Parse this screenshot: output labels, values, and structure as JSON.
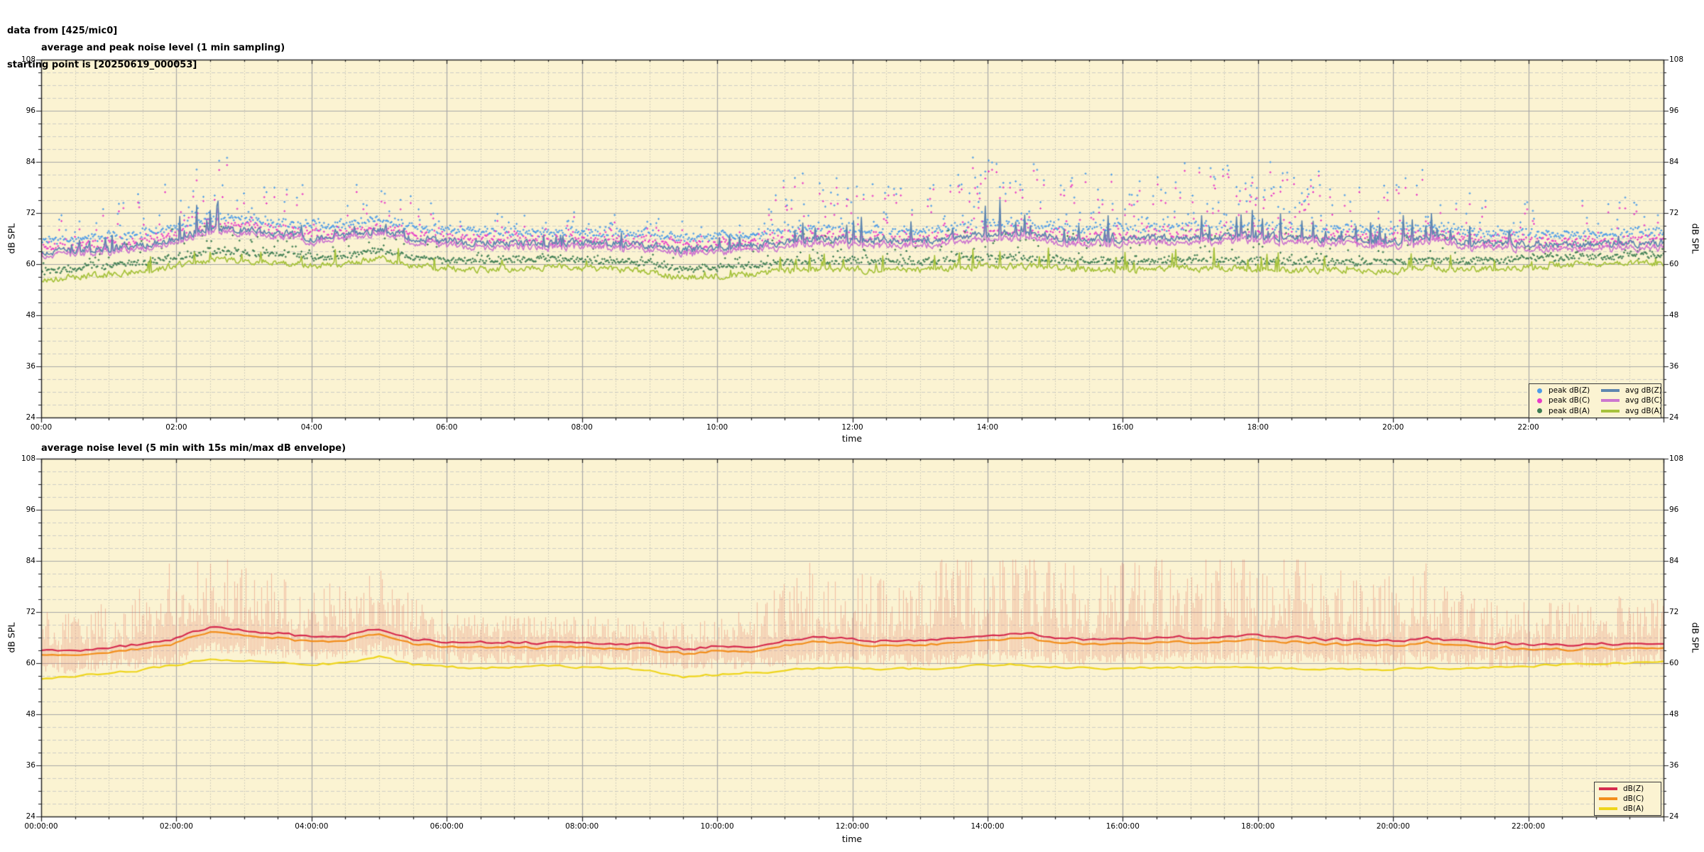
{
  "header": {
    "line1": "data from [425/mic0]",
    "line2": "starting point is [20250619_000053]"
  },
  "colors": {
    "plot_background": "#FBF3D2",
    "grid_major": "#A8A8A8",
    "grid_minor_dashed": "#CDCDC7",
    "grid_minor_dotted": "#BDBDB2",
    "border": "#1d1d1d",
    "peak_dbz": "#4D9CE8",
    "peak_dbc": "#E83CC8",
    "peak_dba": "#3D7D52",
    "avg_dbz": "#5F87B0",
    "avg_dbc": "#CC78CF",
    "avg_dba": "#A6C23C",
    "dbz": "#D62B4E",
    "dbc": "#F28E1C",
    "dba": "#EED51C",
    "envelope": "rgba(228,120,100,0.42)"
  },
  "chart_data": [
    {
      "type": "scatter",
      "title": "average and peak noise level (1 min sampling)",
      "xlabel": "time",
      "ylabel": "dB SPL",
      "y2label": "dB SPL",
      "xlim_hours": [
        0,
        24
      ],
      "ylim": [
        24,
        108
      ],
      "y_ticks": [
        24,
        36,
        48,
        60,
        72,
        84,
        96,
        108
      ],
      "y_minor_step_db": 3,
      "x_tick_labels": [
        "00:00",
        "02:00",
        "04:00",
        "06:00",
        "08:00",
        "10:00",
        "12:00",
        "14:00",
        "16:00",
        "18:00",
        "20:00",
        "22:00"
      ],
      "x_minor_step_hours": 0.5,
      "sampling": "1 min",
      "seed": 1337,
      "anchor_step_hours": 0.5,
      "scatter_series": [
        {
          "name": "peak dB(Z)",
          "color_key": "peak_dbz"
        },
        {
          "name": "peak dB(C)",
          "color_key": "peak_dbc"
        },
        {
          "name": "peak dB(A)",
          "color_key": "peak_dba"
        }
      ],
      "series": [
        {
          "name": "avg dB(Z)",
          "color_key": "avg_dbz",
          "anchors": [
            62.9,
            63.3,
            63.9,
            64.6,
            66.0,
            68.6,
            68.0,
            67.2,
            66.3,
            66.6,
            68.3,
            66.0,
            65.3,
            65.1,
            65.1,
            64.9,
            65.0,
            64.8,
            64.6,
            63.6,
            64.1,
            64.3,
            65.3,
            66.2,
            65.7,
            65.4,
            65.3,
            66.3,
            67.0,
            67.3,
            66.2,
            65.7,
            65.9,
            66.1,
            66.3,
            66.4,
            66.6,
            66.3,
            65.8,
            65.6,
            65.4,
            66.3,
            65.2,
            64.8,
            64.7,
            64.5,
            64.7,
            64.9,
            65.1
          ]
        },
        {
          "name": "avg dB(C)",
          "color_key": "avg_dbc",
          "anchors": [
            62.1,
            62.5,
            63.1,
            63.8,
            65.2,
            67.8,
            67.2,
            66.4,
            65.5,
            65.8,
            67.5,
            65.2,
            64.4,
            64.2,
            64.2,
            64.0,
            64.1,
            63.9,
            63.7,
            62.7,
            63.2,
            63.4,
            64.2,
            65.1,
            64.6,
            64.3,
            64.2,
            65.2,
            65.9,
            66.2,
            65.1,
            64.6,
            64.8,
            65.0,
            65.2,
            65.3,
            65.5,
            65.2,
            64.7,
            64.5,
            64.3,
            65.2,
            64.1,
            63.7,
            63.6,
            63.4,
            63.6,
            63.8,
            64.0
          ]
        },
        {
          "name": "avg dB(A)",
          "color_key": "avg_dba",
          "anchors": [
            56.5,
            56.9,
            57.6,
            58.4,
            59.6,
            61.0,
            60.7,
            60.4,
            59.7,
            60.0,
            61.4,
            59.6,
            59.0,
            58.9,
            59.0,
            59.4,
            59.1,
            58.7,
            58.2,
            56.8,
            57.3,
            57.7,
            58.3,
            58.9,
            58.8,
            58.6,
            58.6,
            59.2,
            59.5,
            59.6,
            59.0,
            58.8,
            58.8,
            58.9,
            59.0,
            58.9,
            58.8,
            58.7,
            58.6,
            58.5,
            58.5,
            59.1,
            58.7,
            58.9,
            59.3,
            59.7,
            59.9,
            60.1,
            60.2
          ]
        }
      ],
      "activity": [
        0.3,
        0.32,
        0.4,
        0.55,
        0.8,
        0.9,
        0.7,
        0.55,
        0.45,
        0.5,
        0.55,
        0.35,
        0.2,
        0.15,
        0.15,
        0.15,
        0.15,
        0.15,
        0.15,
        0.15,
        0.18,
        0.35,
        0.75,
        0.85,
        0.65,
        0.55,
        0.6,
        0.9,
        0.95,
        0.95,
        0.75,
        0.7,
        0.8,
        0.85,
        0.85,
        0.85,
        0.9,
        0.8,
        0.7,
        0.6,
        0.6,
        0.8,
        0.45,
        0.35,
        0.35,
        0.35,
        0.4,
        0.4,
        0.4
      ],
      "scatter_max_db": 88.5
    },
    {
      "type": "line",
      "title": "average noise level (5 min with 15s min/max dB envelope)",
      "xlabel": "time",
      "ylabel": "dB SPL",
      "y2label": "dB SPL",
      "xlim_hours": [
        0,
        24
      ],
      "ylim": [
        24,
        108
      ],
      "y_ticks": [
        24,
        36,
        48,
        60,
        72,
        84,
        96,
        108
      ],
      "y_minor_step_db": 3,
      "x_tick_labels": [
        "00:00:00",
        "02:00:00",
        "04:00:00",
        "06:00:00",
        "08:00:00",
        "10:00:00",
        "12:00:00",
        "14:00:00",
        "16:00:00",
        "18:00:00",
        "20:00:00",
        "22:00:00"
      ],
      "x_minor_step_hours": 0.5,
      "sampling": "5 min",
      "seed": 4242,
      "anchor_step_hours": 0.5,
      "series": [
        {
          "name": "dB(Z)",
          "color_key": "dbz",
          "anchors": [
            62.7,
            63.1,
            63.7,
            64.4,
            65.8,
            68.4,
            67.8,
            67.0,
            66.1,
            66.4,
            68.1,
            65.8,
            65.1,
            64.9,
            64.9,
            64.7,
            64.8,
            64.6,
            64.4,
            63.4,
            63.9,
            64.1,
            65.1,
            66.0,
            65.5,
            65.2,
            65.1,
            66.1,
            66.8,
            67.1,
            66.0,
            65.5,
            65.7,
            65.9,
            66.1,
            66.2,
            66.4,
            66.1,
            65.6,
            65.4,
            65.2,
            66.1,
            65.0,
            64.6,
            64.5,
            64.3,
            64.5,
            64.7,
            64.9
          ]
        },
        {
          "name": "dB(C)",
          "color_key": "dbc",
          "anchors": [
            61.6,
            62.0,
            62.6,
            63.3,
            64.7,
            67.3,
            66.7,
            65.9,
            65.0,
            65.3,
            67.0,
            64.7,
            64.0,
            63.8,
            63.8,
            63.6,
            63.7,
            63.5,
            63.3,
            62.3,
            62.8,
            63.0,
            64.0,
            64.9,
            64.4,
            64.1,
            64.0,
            65.0,
            65.7,
            66.0,
            64.9,
            64.4,
            64.6,
            64.8,
            65.0,
            65.1,
            65.3,
            65.0,
            64.5,
            64.3,
            64.1,
            65.0,
            63.9,
            63.5,
            63.4,
            63.2,
            63.4,
            63.6,
            63.8
          ]
        },
        {
          "name": "dB(A)",
          "color_key": "dba",
          "anchors": [
            56.5,
            56.9,
            57.6,
            58.4,
            59.6,
            61.0,
            60.7,
            60.4,
            59.7,
            60.0,
            61.4,
            59.6,
            59.0,
            58.9,
            59.0,
            59.4,
            59.1,
            58.7,
            58.2,
            56.8,
            57.3,
            57.7,
            58.3,
            58.9,
            58.8,
            58.6,
            58.6,
            59.2,
            59.5,
            59.6,
            59.0,
            58.8,
            58.8,
            58.9,
            59.0,
            58.9,
            58.8,
            58.7,
            58.6,
            58.5,
            58.5,
            59.1,
            58.7,
            58.9,
            59.3,
            59.7,
            59.9,
            60.1,
            60.2
          ]
        }
      ],
      "activity": [
        0.3,
        0.32,
        0.4,
        0.55,
        0.8,
        0.9,
        0.7,
        0.55,
        0.45,
        0.5,
        0.55,
        0.35,
        0.2,
        0.15,
        0.15,
        0.15,
        0.15,
        0.15,
        0.15,
        0.15,
        0.18,
        0.35,
        0.75,
        0.85,
        0.65,
        0.55,
        0.6,
        0.9,
        0.95,
        0.95,
        0.75,
        0.7,
        0.8,
        0.85,
        0.85,
        0.85,
        0.9,
        0.8,
        0.7,
        0.6,
        0.6,
        0.8,
        0.45,
        0.35,
        0.35,
        0.35,
        0.4,
        0.4,
        0.4
      ],
      "envelope_max_db": 84.3
    }
  ]
}
